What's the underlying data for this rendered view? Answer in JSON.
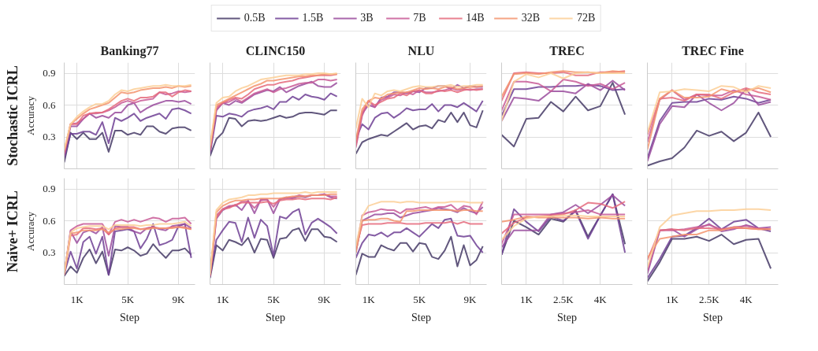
{
  "chart_data": [
    {
      "type": "line",
      "title": "Banking77",
      "ylabel": "Accuracy",
      "annotations": [
        "Stochastic ICRL"
      ],
      "legend": "top",
      "grid": true,
      "tick_labels": "y",
      "xlim": [
        0,
        10300
      ],
      "ylim": [
        0,
        1.0
      ],
      "xticks": [
        1000,
        5000,
        9000
      ],
      "yticks": [
        0.3,
        0.6,
        0.9
      ],
      "x": [
        0,
        500,
        1000,
        1500,
        2000,
        2500,
        3000,
        3500,
        4000,
        4500,
        5000,
        5500,
        6000,
        6500,
        7000,
        7500,
        8000,
        8500,
        9000,
        9500,
        10000
      ],
      "series": [
        {
          "name": "0.5B",
          "color": "#453a66",
          "values": [
            0.06,
            0.34,
            0.28,
            0.34,
            0.28,
            0.28,
            0.34,
            0.16,
            0.36,
            0.36,
            0.32,
            0.34,
            0.32,
            0.4,
            0.4,
            0.35,
            0.33,
            0.38,
            0.39,
            0.39,
            0.36
          ]
        },
        {
          "name": "1.5B",
          "color": "#6e3f94",
          "values": [
            0.1,
            0.33,
            0.33,
            0.35,
            0.35,
            0.32,
            0.44,
            0.24,
            0.48,
            0.45,
            0.48,
            0.52,
            0.45,
            0.48,
            0.5,
            0.52,
            0.47,
            0.56,
            0.57,
            0.55,
            0.52
          ]
        },
        {
          "name": "3B",
          "color": "#9a4c9e",
          "values": [
            0.12,
            0.4,
            0.4,
            0.47,
            0.52,
            0.48,
            0.5,
            0.48,
            0.53,
            0.53,
            0.6,
            0.62,
            0.53,
            0.57,
            0.6,
            0.62,
            0.64,
            0.64,
            0.63,
            0.64,
            0.61
          ]
        },
        {
          "name": "7B",
          "color": "#c85a96",
          "values": [
            0.14,
            0.42,
            0.43,
            0.47,
            0.52,
            0.52,
            0.53,
            0.55,
            0.58,
            0.62,
            0.64,
            0.62,
            0.64,
            0.65,
            0.66,
            0.72,
            0.7,
            0.71,
            0.73,
            0.72,
            0.73
          ]
        },
        {
          "name": "14B",
          "color": "#e56b7d",
          "values": [
            0.15,
            0.42,
            0.42,
            0.5,
            0.52,
            0.53,
            0.53,
            0.56,
            0.6,
            0.64,
            0.66,
            0.64,
            0.67,
            0.67,
            0.68,
            0.72,
            0.72,
            0.68,
            0.72,
            0.74,
            0.73
          ]
        },
        {
          "name": "32B",
          "color": "#f3946e",
          "values": [
            0.17,
            0.42,
            0.47,
            0.52,
            0.56,
            0.58,
            0.6,
            0.62,
            0.67,
            0.72,
            0.71,
            0.72,
            0.74,
            0.75,
            0.76,
            0.76,
            0.77,
            0.76,
            0.78,
            0.77,
            0.78
          ]
        },
        {
          "name": "72B",
          "color": "#fccf96",
          "values": [
            0.18,
            0.42,
            0.49,
            0.54,
            0.58,
            0.61,
            0.61,
            0.64,
            0.7,
            0.74,
            0.73,
            0.75,
            0.76,
            0.77,
            0.78,
            0.78,
            0.79,
            0.78,
            0.78,
            0.78,
            0.79
          ]
        }
      ]
    },
    {
      "type": "line",
      "title": "CLINC150",
      "grid": true,
      "tick_labels": false,
      "xlim": [
        0,
        10300
      ],
      "ylim": [
        0,
        1.0
      ],
      "xticks": [
        1000,
        5000,
        9000
      ],
      "yticks": [
        0.3,
        0.6,
        0.9
      ],
      "x": [
        0,
        500,
        1000,
        1500,
        2000,
        2500,
        3000,
        3500,
        4000,
        4500,
        5000,
        5500,
        6000,
        6500,
        7000,
        7500,
        8000,
        8500,
        9000,
        9500,
        10000
      ],
      "series": [
        {
          "color": "#453a66",
          "values": [
            0.12,
            0.28,
            0.34,
            0.48,
            0.47,
            0.4,
            0.45,
            0.46,
            0.45,
            0.46,
            0.48,
            0.5,
            0.48,
            0.49,
            0.52,
            0.53,
            0.53,
            0.52,
            0.51,
            0.55,
            0.55
          ]
        },
        {
          "color": "#6e3f94",
          "values": [
            0.14,
            0.5,
            0.49,
            0.52,
            0.51,
            0.49,
            0.54,
            0.56,
            0.57,
            0.59,
            0.56,
            0.63,
            0.63,
            0.68,
            0.65,
            0.7,
            0.68,
            0.67,
            0.65,
            0.71,
            0.68
          ]
        },
        {
          "color": "#9a4c9e",
          "values": [
            0.16,
            0.55,
            0.62,
            0.6,
            0.64,
            0.62,
            0.66,
            0.7,
            0.72,
            0.74,
            0.73,
            0.77,
            0.72,
            0.75,
            0.78,
            0.8,
            0.82,
            0.78,
            0.77,
            0.77,
            0.81
          ]
        },
        {
          "color": "#c85a96",
          "values": [
            0.17,
            0.56,
            0.62,
            0.63,
            0.66,
            0.63,
            0.67,
            0.71,
            0.73,
            0.75,
            0.72,
            0.75,
            0.76,
            0.78,
            0.8,
            0.81,
            0.81,
            0.84,
            0.84,
            0.83,
            0.84
          ]
        },
        {
          "color": "#e56b7d",
          "values": [
            0.18,
            0.58,
            0.62,
            0.65,
            0.67,
            0.66,
            0.7,
            0.75,
            0.77,
            0.79,
            0.79,
            0.81,
            0.82,
            0.83,
            0.85,
            0.86,
            0.87,
            0.88,
            0.88,
            0.88,
            0.89
          ]
        },
        {
          "color": "#f3946e",
          "values": [
            0.2,
            0.6,
            0.63,
            0.66,
            0.69,
            0.72,
            0.75,
            0.78,
            0.8,
            0.83,
            0.83,
            0.84,
            0.85,
            0.86,
            0.87,
            0.87,
            0.88,
            0.88,
            0.89,
            0.89,
            0.89
          ]
        },
        {
          "color": "#fccf96",
          "values": [
            0.22,
            0.62,
            0.67,
            0.68,
            0.73,
            0.76,
            0.78,
            0.81,
            0.84,
            0.85,
            0.86,
            0.87,
            0.88,
            0.88,
            0.88,
            0.89,
            0.89,
            0.9,
            0.9,
            0.89,
            0.9
          ]
        }
      ]
    },
    {
      "type": "line",
      "title": "NLU",
      "grid": true,
      "tick_labels": false,
      "xlim": [
        0,
        10300
      ],
      "ylim": [
        0,
        1.0
      ],
      "xticks": [
        1000,
        5000,
        9000
      ],
      "yticks": [
        0.3,
        0.6,
        0.9
      ],
      "x": [
        0,
        500,
        1000,
        1500,
        2000,
        2500,
        3000,
        3500,
        4000,
        4500,
        5000,
        5500,
        6000,
        6500,
        7000,
        7500,
        8000,
        8500,
        9000,
        9500,
        10000
      ],
      "series": [
        {
          "color": "#453a66",
          "values": [
            0.14,
            0.25,
            0.28,
            0.3,
            0.32,
            0.31,
            0.35,
            0.39,
            0.43,
            0.37,
            0.4,
            0.41,
            0.38,
            0.46,
            0.44,
            0.53,
            0.44,
            0.53,
            0.41,
            0.39,
            0.55
          ]
        },
        {
          "color": "#6e3f94",
          "values": [
            0.28,
            0.42,
            0.37,
            0.48,
            0.52,
            0.53,
            0.48,
            0.52,
            0.57,
            0.55,
            0.56,
            0.56,
            0.61,
            0.54,
            0.6,
            0.6,
            0.58,
            0.62,
            0.58,
            0.54,
            0.64
          ]
        },
        {
          "color": "#9a4c9e",
          "values": [
            0.23,
            0.52,
            0.6,
            0.58,
            0.67,
            0.68,
            0.72,
            0.72,
            0.71,
            0.73,
            0.72,
            0.76,
            0.76,
            0.78,
            0.78,
            0.75,
            0.79,
            0.76,
            0.78,
            0.77,
            0.77
          ]
        },
        {
          "color": "#c85a96",
          "values": [
            0.2,
            0.5,
            0.64,
            0.58,
            0.65,
            0.67,
            0.7,
            0.69,
            0.72,
            0.7,
            0.74,
            0.72,
            0.72,
            0.73,
            0.74,
            0.76,
            0.74,
            0.75,
            0.74,
            0.75,
            0.75
          ]
        },
        {
          "color": "#e56b7d",
          "values": [
            0.22,
            0.53,
            0.64,
            0.6,
            0.63,
            0.66,
            0.67,
            0.71,
            0.69,
            0.73,
            0.74,
            0.71,
            0.71,
            0.74,
            0.73,
            0.74,
            0.72,
            0.74,
            0.75,
            0.74,
            0.75
          ]
        },
        {
          "color": "#f3946e",
          "values": [
            0.27,
            0.56,
            0.64,
            0.67,
            0.66,
            0.7,
            0.71,
            0.72,
            0.72,
            0.74,
            0.76,
            0.75,
            0.76,
            0.75,
            0.77,
            0.77,
            0.75,
            0.76,
            0.77,
            0.77,
            0.78
          ]
        },
        {
          "color": "#fccf96",
          "values": [
            0.38,
            0.66,
            0.58,
            0.71,
            0.69,
            0.73,
            0.74,
            0.73,
            0.75,
            0.77,
            0.78,
            0.77,
            0.77,
            0.78,
            0.78,
            0.79,
            0.77,
            0.78,
            0.78,
            0.79,
            0.79
          ]
        }
      ]
    },
    {
      "type": "line",
      "title": "TREC",
      "grid": true,
      "tick_labels": false,
      "xlim": [
        0,
        5300
      ],
      "ylim": [
        0,
        1.0
      ],
      "xticks": [
        1000,
        2500,
        4000
      ],
      "yticks": [
        0.3,
        0.6,
        0.9
      ],
      "x": [
        0,
        500,
        1000,
        1500,
        2000,
        2500,
        3000,
        3500,
        4000,
        4500,
        5000
      ],
      "series": [
        {
          "color": "#453a66",
          "values": [
            0.32,
            0.21,
            0.47,
            0.48,
            0.63,
            0.54,
            0.68,
            0.55,
            0.59,
            0.81,
            0.51
          ]
        },
        {
          "color": "#6e3f94",
          "values": [
            0.5,
            0.75,
            0.75,
            0.77,
            0.77,
            0.78,
            0.78,
            0.79,
            0.78,
            0.74,
            0.75
          ]
        },
        {
          "color": "#9a4c9e",
          "values": [
            0.45,
            0.67,
            0.66,
            0.64,
            0.73,
            0.73,
            0.71,
            0.8,
            0.74,
            0.83,
            0.74
          ]
        },
        {
          "color": "#c85a96",
          "values": [
            0.55,
            0.82,
            0.82,
            0.8,
            0.73,
            0.84,
            0.82,
            0.78,
            0.8,
            0.75,
            0.81
          ]
        },
        {
          "color": "#e56b7d",
          "values": [
            0.64,
            0.9,
            0.91,
            0.9,
            0.9,
            0.91,
            0.88,
            0.88,
            0.91,
            0.91,
            0.92
          ]
        },
        {
          "color": "#f3946e",
          "values": [
            0.68,
            0.89,
            0.9,
            0.89,
            0.91,
            0.92,
            0.91,
            0.91,
            0.9,
            0.92,
            0.91
          ]
        },
        {
          "color": "#fccf96",
          "values": [
            0.45,
            0.82,
            0.89,
            0.86,
            0.9,
            0.85,
            0.9,
            0.91,
            0.9,
            0.9,
            0.9
          ]
        }
      ]
    },
    {
      "type": "line",
      "title": "TREC Fine",
      "grid": true,
      "tick_labels": false,
      "xlim": [
        0,
        5300
      ],
      "ylim": [
        0,
        1.0
      ],
      "xticks": [
        1000,
        2500,
        4000
      ],
      "yticks": [
        0.3,
        0.6,
        0.9
      ],
      "x": [
        0,
        500,
        1000,
        1500,
        2000,
        2500,
        3000,
        3500,
        4000,
        4500,
        5000
      ],
      "series": [
        {
          "color": "#453a66",
          "values": [
            0.03,
            0.07,
            0.1,
            0.2,
            0.36,
            0.31,
            0.35,
            0.26,
            0.34,
            0.53,
            0.3
          ]
        },
        {
          "color": "#6e3f94",
          "values": [
            0.1,
            0.45,
            0.62,
            0.63,
            0.63,
            0.66,
            0.65,
            0.68,
            0.66,
            0.62,
            0.65
          ]
        },
        {
          "color": "#9a4c9e",
          "values": [
            0.07,
            0.42,
            0.59,
            0.58,
            0.7,
            0.62,
            0.55,
            0.62,
            0.75,
            0.6,
            0.63
          ]
        },
        {
          "color": "#c85a96",
          "values": [
            0.25,
            0.65,
            0.74,
            0.65,
            0.7,
            0.69,
            0.69,
            0.74,
            0.7,
            0.68,
            0.65
          ]
        },
        {
          "color": "#e56b7d",
          "values": [
            0.32,
            0.66,
            0.67,
            0.64,
            0.7,
            0.7,
            0.66,
            0.72,
            0.76,
            0.72,
            0.7
          ]
        },
        {
          "color": "#f3946e",
          "values": [
            0.18,
            0.66,
            0.74,
            0.67,
            0.67,
            0.68,
            0.75,
            0.72,
            0.74,
            0.76,
            0.72
          ]
        },
        {
          "color": "#fccf96",
          "values": [
            0.34,
            0.72,
            0.73,
            0.75,
            0.74,
            0.73,
            0.78,
            0.77,
            0.72,
            0.78,
            0.76
          ]
        }
      ]
    },
    {
      "type": "line",
      "xlabel": "Step",
      "ylabel": "Accuracy",
      "annotations": [
        "Naive+ ICRL"
      ],
      "grid": true,
      "xlim": [
        0,
        10300
      ],
      "ylim": [
        0,
        1.0
      ],
      "xticks": [
        {
          "value": 1000,
          "label": "1K"
        },
        {
          "value": 5000,
          "label": "5K"
        },
        {
          "value": 9000,
          "label": "9K"
        }
      ],
      "yticks": [
        0.3,
        0.6,
        0.9
      ],
      "x": [
        0,
        500,
        1000,
        1500,
        2000,
        2500,
        3000,
        3500,
        4000,
        4500,
        5000,
        5500,
        6000,
        6500,
        7000,
        7500,
        8000,
        8500,
        9000,
        9500,
        10000
      ],
      "series": [
        {
          "color": "#453a66",
          "values": [
            0.08,
            0.17,
            0.11,
            0.25,
            0.33,
            0.2,
            0.31,
            0.09,
            0.33,
            0.32,
            0.35,
            0.32,
            0.27,
            0.29,
            0.38,
            0.31,
            0.25,
            0.32,
            0.32,
            0.34,
            0.28
          ]
        },
        {
          "color": "#6e3f94",
          "values": [
            0.1,
            0.31,
            0.15,
            0.4,
            0.45,
            0.29,
            0.45,
            0.09,
            0.5,
            0.51,
            0.52,
            0.5,
            0.34,
            0.43,
            0.57,
            0.37,
            0.39,
            0.42,
            0.55,
            0.57,
            0.25
          ]
        },
        {
          "color": "#9a4c9e",
          "values": [
            0.09,
            0.5,
            0.39,
            0.49,
            0.51,
            0.48,
            0.54,
            0.27,
            0.55,
            0.54,
            0.54,
            0.5,
            0.48,
            0.53,
            0.54,
            0.52,
            0.51,
            0.55,
            0.56,
            0.57,
            0.53
          ]
        },
        {
          "color": "#c85a96",
          "values": [
            0.1,
            0.51,
            0.55,
            0.57,
            0.57,
            0.57,
            0.57,
            0.47,
            0.59,
            0.61,
            0.59,
            0.61,
            0.59,
            0.61,
            0.63,
            0.62,
            0.59,
            0.62,
            0.62,
            0.63,
            0.57
          ]
        },
        {
          "color": "#e56b7d",
          "values": [
            0.09,
            0.46,
            0.47,
            0.53,
            0.53,
            0.52,
            0.53,
            0.47,
            0.53,
            0.54,
            0.54,
            0.54,
            0.52,
            0.53,
            0.54,
            0.53,
            0.53,
            0.54,
            0.54,
            0.54,
            0.52
          ]
        },
        {
          "color": "#f3946e",
          "values": [
            0.1,
            0.48,
            0.49,
            0.51,
            0.51,
            0.51,
            0.52,
            0.49,
            0.52,
            0.52,
            0.53,
            0.53,
            0.52,
            0.52,
            0.53,
            0.53,
            0.53,
            0.53,
            0.54,
            0.53,
            0.52
          ]
        },
        {
          "color": "#fccf96",
          "values": [
            0.11,
            0.49,
            0.53,
            0.54,
            0.55,
            0.55,
            0.55,
            0.52,
            0.56,
            0.56,
            0.56,
            0.56,
            0.55,
            0.56,
            0.56,
            0.57,
            0.57,
            0.57,
            0.58,
            0.59,
            0.55
          ]
        }
      ]
    },
    {
      "type": "line",
      "xlabel": "Step",
      "grid": true,
      "tick_labels": "x",
      "xlim": [
        0,
        10300
      ],
      "ylim": [
        0,
        1.0
      ],
      "xticks": [
        {
          "value": 1000,
          "label": "1K"
        },
        {
          "value": 5000,
          "label": "5K"
        },
        {
          "value": 9000,
          "label": "9K"
        }
      ],
      "yticks": [
        0.3,
        0.6,
        0.9
      ],
      "x": [
        0,
        500,
        1000,
        1500,
        2000,
        2500,
        3000,
        3500,
        4000,
        4500,
        5000,
        5500,
        6000,
        6500,
        7000,
        7500,
        8000,
        8500,
        9000,
        9500,
        10000
      ],
      "series": [
        {
          "color": "#453a66",
          "values": [
            0.06,
            0.37,
            0.32,
            0.42,
            0.4,
            0.37,
            0.44,
            0.3,
            0.43,
            0.42,
            0.25,
            0.43,
            0.44,
            0.51,
            0.53,
            0.41,
            0.52,
            0.52,
            0.45,
            0.44,
            0.4
          ]
        },
        {
          "color": "#6e3f94",
          "values": [
            0.08,
            0.42,
            0.51,
            0.59,
            0.58,
            0.4,
            0.63,
            0.44,
            0.61,
            0.55,
            0.27,
            0.64,
            0.62,
            0.68,
            0.71,
            0.47,
            0.58,
            0.62,
            0.58,
            0.54,
            0.48
          ]
        },
        {
          "color": "#9a4c9e",
          "values": [
            0.07,
            0.62,
            0.7,
            0.73,
            0.75,
            0.7,
            0.79,
            0.67,
            0.8,
            0.8,
            0.67,
            0.8,
            0.82,
            0.81,
            0.83,
            0.82,
            0.84,
            0.84,
            0.85,
            0.82,
            0.81
          ]
        },
        {
          "color": "#c85a96",
          "values": [
            0.08,
            0.65,
            0.71,
            0.74,
            0.74,
            0.78,
            0.78,
            0.72,
            0.79,
            0.8,
            0.73,
            0.81,
            0.81,
            0.82,
            0.84,
            0.83,
            0.84,
            0.84,
            0.85,
            0.83,
            0.83
          ]
        },
        {
          "color": "#e56b7d",
          "values": [
            0.08,
            0.63,
            0.71,
            0.72,
            0.75,
            0.77,
            0.77,
            0.77,
            0.77,
            0.78,
            0.76,
            0.79,
            0.8,
            0.8,
            0.81,
            0.8,
            0.81,
            0.81,
            0.81,
            0.8,
            0.82
          ]
        },
        {
          "color": "#f3946e",
          "values": [
            0.09,
            0.68,
            0.74,
            0.77,
            0.79,
            0.79,
            0.8,
            0.8,
            0.81,
            0.81,
            0.81,
            0.81,
            0.82,
            0.83,
            0.83,
            0.83,
            0.84,
            0.84,
            0.84,
            0.85,
            0.85
          ]
        },
        {
          "color": "#fccf96",
          "values": [
            0.1,
            0.7,
            0.77,
            0.8,
            0.81,
            0.82,
            0.84,
            0.84,
            0.85,
            0.85,
            0.86,
            0.86,
            0.86,
            0.86,
            0.86,
            0.87,
            0.86,
            0.87,
            0.87,
            0.87,
            0.87
          ]
        }
      ]
    },
    {
      "type": "line",
      "xlabel": "Step",
      "grid": true,
      "tick_labels": "x",
      "xlim": [
        0,
        10300
      ],
      "ylim": [
        0,
        1.0
      ],
      "xticks": [
        {
          "value": 1000,
          "label": "1K"
        },
        {
          "value": 5000,
          "label": "5K"
        },
        {
          "value": 9000,
          "label": "9K"
        }
      ],
      "yticks": [
        0.3,
        0.6,
        0.9
      ],
      "x": [
        0,
        500,
        1000,
        1500,
        2000,
        2500,
        3000,
        3500,
        4000,
        4500,
        5000,
        5500,
        6000,
        6500,
        7000,
        7500,
        8000,
        8500,
        9000,
        9500,
        10000
      ],
      "series": [
        {
          "color": "#453a66",
          "values": [
            0.09,
            0.29,
            0.26,
            0.26,
            0.37,
            0.34,
            0.32,
            0.39,
            0.39,
            0.31,
            0.39,
            0.38,
            0.26,
            0.24,
            0.32,
            0.45,
            0.17,
            0.37,
            0.18,
            0.23,
            0.36
          ]
        },
        {
          "color": "#6e3f94",
          "values": [
            0.25,
            0.39,
            0.47,
            0.46,
            0.49,
            0.45,
            0.49,
            0.49,
            0.53,
            0.49,
            0.45,
            0.51,
            0.57,
            0.53,
            0.61,
            0.62,
            0.46,
            0.45,
            0.46,
            0.37,
            0.3
          ]
        },
        {
          "color": "#9a4c9e",
          "values": [
            0.3,
            0.6,
            0.63,
            0.66,
            0.66,
            0.67,
            0.67,
            0.63,
            0.65,
            0.67,
            0.68,
            0.69,
            0.7,
            0.72,
            0.71,
            0.7,
            0.68,
            0.72,
            0.69,
            0.67,
            0.73
          ]
        },
        {
          "color": "#c85a96",
          "values": [
            0.32,
            0.65,
            0.68,
            0.69,
            0.71,
            0.7,
            0.7,
            0.67,
            0.71,
            0.71,
            0.72,
            0.73,
            0.71,
            0.73,
            0.73,
            0.75,
            0.7,
            0.74,
            0.73,
            0.66,
            0.78
          ]
        },
        {
          "color": "#e56b7d",
          "values": [
            0.34,
            0.56,
            0.57,
            0.57,
            0.57,
            0.58,
            0.58,
            0.58,
            0.57,
            0.57,
            0.57,
            0.58,
            0.58,
            0.58,
            0.58,
            0.59,
            0.57,
            0.59,
            0.57,
            0.57,
            0.57
          ]
        },
        {
          "color": "#f3946e",
          "values": [
            0.3,
            0.6,
            0.61,
            0.61,
            0.62,
            0.62,
            0.6,
            0.59,
            0.69,
            0.69,
            0.7,
            0.7,
            0.7,
            0.7,
            0.7,
            0.7,
            0.69,
            0.7,
            0.7,
            0.69,
            0.69
          ]
        },
        {
          "color": "#fccf96",
          "values": [
            0.36,
            0.64,
            0.74,
            0.76,
            0.78,
            0.78,
            0.78,
            0.77,
            0.78,
            0.78,
            0.77,
            0.77,
            0.77,
            0.77,
            0.77,
            0.78,
            0.78,
            0.78,
            0.77,
            0.77,
            0.77
          ]
        }
      ]
    },
    {
      "type": "line",
      "xlabel": "Step",
      "grid": true,
      "tick_labels": "x",
      "xlim": [
        0,
        5300
      ],
      "ylim": [
        0,
        1.0
      ],
      "xticks": [
        {
          "value": 1000,
          "label": "1K"
        },
        {
          "value": 2500,
          "label": "2.5K"
        },
        {
          "value": 4000,
          "label": "4K"
        }
      ],
      "yticks": [
        0.3,
        0.6,
        0.9
      ],
      "x": [
        0,
        500,
        1000,
        1500,
        2000,
        2500,
        3000,
        3500,
        4000,
        4500,
        5000
      ],
      "series": [
        {
          "color": "#453a66",
          "values": [
            0.28,
            0.6,
            0.54,
            0.47,
            0.62,
            0.59,
            0.7,
            0.45,
            0.65,
            0.85,
            0.38
          ]
        },
        {
          "color": "#6e3f94",
          "values": [
            0.28,
            0.71,
            0.59,
            0.5,
            0.64,
            0.6,
            0.69,
            0.43,
            0.65,
            0.85,
            0.3
          ]
        },
        {
          "color": "#9a4c9e",
          "values": [
            0.35,
            0.51,
            0.51,
            0.51,
            0.66,
            0.68,
            0.75,
            0.67,
            0.75,
            0.84,
            0.74
          ]
        },
        {
          "color": "#c85a96",
          "values": [
            0.38,
            0.66,
            0.66,
            0.66,
            0.66,
            0.67,
            0.68,
            0.7,
            0.66,
            0.66,
            0.66
          ]
        },
        {
          "color": "#e56b7d",
          "values": [
            0.48,
            0.58,
            0.63,
            0.64,
            0.65,
            0.66,
            0.7,
            0.77,
            0.76,
            0.72,
            0.78
          ]
        },
        {
          "color": "#f3946e",
          "values": [
            0.59,
            0.61,
            0.64,
            0.63,
            0.63,
            0.63,
            0.63,
            0.62,
            0.63,
            0.62,
            0.62
          ]
        },
        {
          "color": "#fccf96",
          "values": [
            0.42,
            0.55,
            0.62,
            0.64,
            0.64,
            0.65,
            0.65,
            0.64,
            0.64,
            0.64,
            0.64
          ]
        }
      ]
    },
    {
      "type": "line",
      "xlabel": "Step",
      "grid": true,
      "tick_labels": "x",
      "xlim": [
        0,
        5300
      ],
      "ylim": [
        0,
        1.0
      ],
      "xticks": [
        {
          "value": 1000,
          "label": "1K"
        },
        {
          "value": 2500,
          "label": "2.5K"
        },
        {
          "value": 4000,
          "label": "4K"
        }
      ],
      "yticks": [
        0.3,
        0.6,
        0.9
      ],
      "x": [
        0,
        500,
        1000,
        1500,
        2000,
        2500,
        3000,
        3500,
        4000,
        4500,
        5000
      ],
      "series": [
        {
          "color": "#453a66",
          "values": [
            0.03,
            0.21,
            0.43,
            0.43,
            0.45,
            0.41,
            0.47,
            0.38,
            0.42,
            0.43,
            0.15
          ]
        },
        {
          "color": "#6e3f94",
          "values": [
            0.06,
            0.24,
            0.45,
            0.46,
            0.53,
            0.62,
            0.52,
            0.59,
            0.61,
            0.53,
            0.5
          ]
        },
        {
          "color": "#9a4c9e",
          "values": [
            0.1,
            0.51,
            0.52,
            0.45,
            0.52,
            0.57,
            0.5,
            0.52,
            0.56,
            0.53,
            0.54
          ]
        },
        {
          "color": "#c85a96",
          "values": [
            0.13,
            0.51,
            0.51,
            0.52,
            0.54,
            0.56,
            0.52,
            0.54,
            0.55,
            0.53,
            0.52
          ]
        },
        {
          "color": "#e56b7d",
          "values": [
            0.23,
            0.51,
            0.52,
            0.51,
            0.53,
            0.53,
            0.52,
            0.53,
            0.53,
            0.52,
            0.52
          ]
        },
        {
          "color": "#f3946e",
          "values": [
            0.25,
            0.43,
            0.45,
            0.47,
            0.47,
            0.51,
            0.51,
            0.54,
            0.53,
            0.52,
            0.52
          ]
        },
        {
          "color": "#fccf96",
          "values": [
            0.16,
            0.54,
            0.65,
            0.67,
            0.69,
            0.69,
            0.7,
            0.7,
            0.71,
            0.71,
            0.7
          ]
        }
      ]
    }
  ]
}
